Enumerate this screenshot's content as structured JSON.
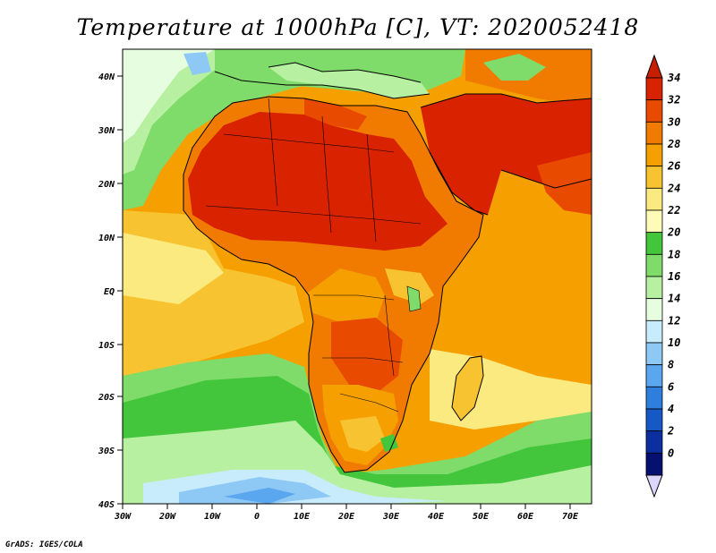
{
  "title": "Temperature at 1000hPa [C], VT: 2020052418",
  "credit": "GrADS: IGES/COLA",
  "map": {
    "lat_labels": [
      "40N",
      "30N",
      "20N",
      "10N",
      "EQ",
      "10S",
      "20S",
      "30S",
      "40S"
    ],
    "lon_labels": [
      "30W",
      "20W",
      "10W",
      "0",
      "10E",
      "20E",
      "30E",
      "40E",
      "50E",
      "60E",
      "70E"
    ]
  },
  "colorbar": {
    "labels": [
      "34",
      "32",
      "30",
      "28",
      "26",
      "24",
      "22",
      "20",
      "18",
      "16",
      "14",
      "12",
      "10",
      "8",
      "6",
      "4",
      "2",
      "0"
    ],
    "colors": [
      "#d92300",
      "#e84a00",
      "#f07b00",
      "#f5a000",
      "#f8c330",
      "#faea80",
      "#fefab8",
      "#44c63c",
      "#7fdc6a",
      "#b6f0a0",
      "#e6fde0",
      "#c9ecfc",
      "#8ec9f6",
      "#5aa6ef",
      "#2e7fdd",
      "#1659c6",
      "#0b2fa0",
      "#051070"
    ],
    "arrow_top": "#c81e00",
    "arrow_bottom": "#ddd6fb"
  }
}
